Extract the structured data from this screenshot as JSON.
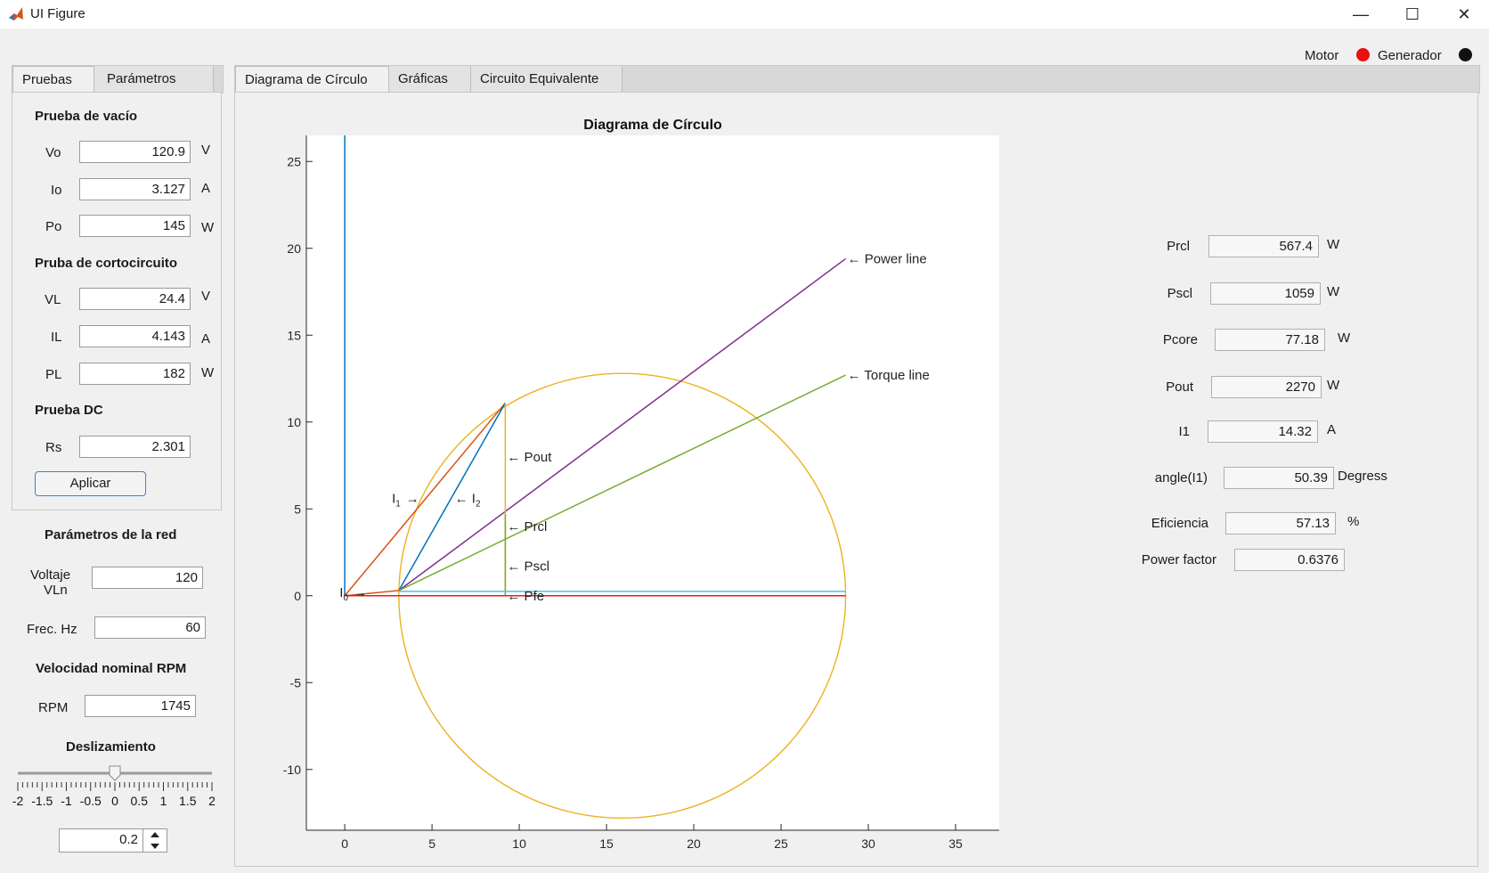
{
  "window": {
    "title": "UI Figure",
    "minimize_glyph": "—",
    "maximize_glyph": "☐",
    "close_glyph": "✕"
  },
  "status": {
    "motor_label": "Motor",
    "generador_label": "Generador",
    "motor_color": "#e81010",
    "generador_color": "#111111"
  },
  "left_tabs": [
    {
      "label": "Pruebas"
    },
    {
      "label": "Parámetros"
    }
  ],
  "pruebas": {
    "vacio_title": "Prueba de vacío",
    "vo": {
      "label": "Vo",
      "value": "120.9",
      "unit": "V"
    },
    "io": {
      "label": "Io",
      "value": "3.127",
      "unit": "A"
    },
    "po": {
      "label": "Po",
      "value": "145",
      "unit": "W"
    },
    "corto_title": "Pruba de cortocircuito",
    "vl": {
      "label": "VL",
      "value": "24.4",
      "unit": "V"
    },
    "il": {
      "label": "IL",
      "value": "4.143",
      "unit": "A"
    },
    "pl": {
      "label": "PL",
      "value": "182",
      "unit": "W"
    },
    "dc_title": "Prueba DC",
    "rs": {
      "label": "Rs",
      "value": "2.301"
    },
    "apply_label": "Aplicar"
  },
  "red": {
    "title": "Parámetros de la red",
    "voltaje_label_1": "Voltaje",
    "voltaje_label_2": "VLn",
    "voltaje_value": "120",
    "frec_label": "Frec. Hz",
    "frec_value": "60",
    "vel_title": "Velocidad nominal RPM",
    "rpm_label": "RPM",
    "rpm_value": "1745",
    "desl_title": "Deslizamiento",
    "slider_ticks": [
      "-2",
      "-1.5",
      "-1",
      "-0.5",
      "0",
      "0.5",
      "1",
      "1.5",
      "2"
    ],
    "slider_min": -2,
    "slider_max": 2,
    "slider_value": 0,
    "spinner_value": "0.2"
  },
  "main_tabs": [
    {
      "label": "Diagrama de Círculo"
    },
    {
      "label": "Gráficas"
    },
    {
      "label": "Circuito Equivalente"
    }
  ],
  "results": [
    {
      "label": "Prcl",
      "value": "567.4",
      "unit": "W"
    },
    {
      "label": "Pscl",
      "value": "1059",
      "unit": "W"
    },
    {
      "label": "Pcore",
      "value": "77.18",
      "unit": "W"
    },
    {
      "label": "Pout",
      "value": "2270",
      "unit": "W"
    },
    {
      "label": "I1",
      "value": "14.32",
      "unit": "A"
    },
    {
      "label": "angle(I1)",
      "value": "50.39",
      "unit": "Degress"
    },
    {
      "label": "Eficiencia",
      "value": "57.13",
      "unit": "%"
    },
    {
      "label": "Power factor",
      "value": "0.6376",
      "unit": ""
    }
  ],
  "chart_data": {
    "type": "line",
    "title": "Diagrama de Círculo",
    "xlim": [
      -2.2,
      37.5
    ],
    "ylim": [
      -13.5,
      26.5
    ],
    "xticks": [
      0,
      5,
      10,
      15,
      20,
      25,
      30,
      35
    ],
    "yticks": [
      -10,
      -5,
      0,
      5,
      10,
      15,
      20,
      25
    ],
    "grid": false,
    "circle": {
      "center": [
        15.9,
        0.0
      ],
      "radius": 12.8,
      "color": "#edb120"
    },
    "series": [
      {
        "color": "#0072bd",
        "x": [
          0,
          0
        ],
        "y": [
          0,
          26.5
        ]
      },
      {
        "color": "#d95319",
        "x": [
          0,
          9.2
        ],
        "y": [
          0,
          11.1
        ]
      },
      {
        "color": "#0072bd",
        "x": [
          3.1,
          9.2
        ],
        "y": [
          0.3,
          11.1
        ]
      },
      {
        "color": "#7e2f8e",
        "x": [
          3.1,
          28.7
        ],
        "y": [
          0.3,
          19.4
        ]
      },
      {
        "color": "#77ac30",
        "x": [
          3.1,
          28.7
        ],
        "y": [
          0.3,
          12.7
        ]
      },
      {
        "color": "#edb120",
        "x": [
          9.2,
          9.2
        ],
        "y": [
          0.3,
          11.1
        ]
      },
      {
        "color": "#77ac30",
        "x": [
          9.2,
          9.2
        ],
        "y": [
          0.0,
          4.7
        ]
      },
      {
        "color": "#4dbeee",
        "x": [
          3.1,
          28.7
        ],
        "y": [
          0.25,
          0.25
        ]
      },
      {
        "color": "#d95319",
        "x": [
          0,
          3.1
        ],
        "y": [
          0.0,
          0.3
        ]
      },
      {
        "color": "#e02020",
        "x": [
          0,
          28.7
        ],
        "y": [
          0.0,
          0.0
        ]
      }
    ],
    "annotations": [
      {
        "text": "← Power  line",
        "x": 28.7,
        "y": 19.4
      },
      {
        "text": "← Torque  line",
        "x": 28.7,
        "y": 12.7
      },
      {
        "text": "← Pout",
        "x": 9.2,
        "y": 8.0
      },
      {
        "text": "← Prcl",
        "x": 9.2,
        "y": 4.0
      },
      {
        "text": "← Pscl",
        "x": 9.2,
        "y": 1.7
      },
      {
        "text": "← Pfe",
        "x": 9.2,
        "y": 0.0
      },
      {
        "text": "I",
        "sub": "1",
        "arrow": "→",
        "x": 2.6,
        "y": 5.6
      },
      {
        "text": "← I",
        "sub": "2",
        "x": 6.2,
        "y": 5.6
      },
      {
        "text": "I",
        "sub": "0",
        "arrow": "→",
        "x": -0.4,
        "y": 0.2
      }
    ]
  }
}
